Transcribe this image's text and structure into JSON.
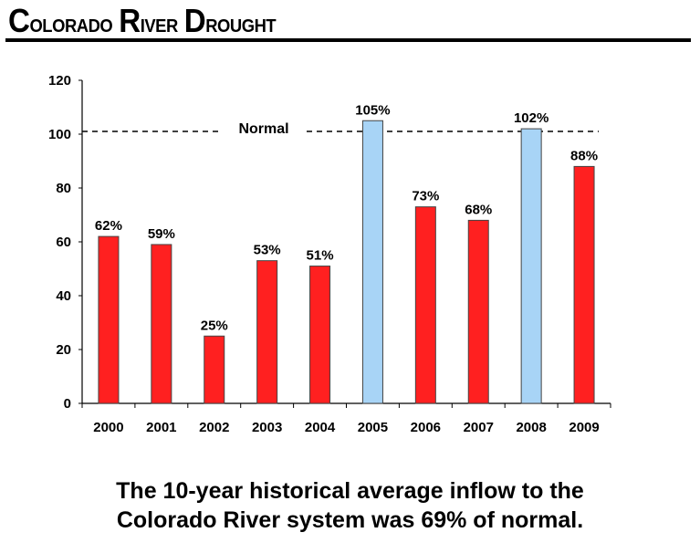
{
  "header": {
    "title": "Colorado River Drought"
  },
  "caption": {
    "line1": "The 10-year historical average inflow to the",
    "line2": "Colorado River system was 69% of normal."
  },
  "colors": {
    "below_normal": "#ff2020",
    "above_normal": "#a8d4f6",
    "bar_outline": "#444444",
    "axis": "#000000"
  },
  "chart_data": {
    "type": "bar",
    "title": "Colorado River Drought",
    "xlabel": "",
    "ylabel": "",
    "categories": [
      "2000",
      "2001",
      "2002",
      "2003",
      "2004",
      "2005",
      "2006",
      "2007",
      "2008",
      "2009"
    ],
    "values": [
      62,
      59,
      25,
      53,
      51,
      105,
      73,
      68,
      102,
      88
    ],
    "data_labels": [
      "62%",
      "59%",
      "25%",
      "53%",
      "51%",
      "105%",
      "73%",
      "68%",
      "102%",
      "88%"
    ],
    "ylim": [
      0,
      120
    ],
    "yticks": [
      0,
      20,
      40,
      60,
      80,
      100,
      120
    ],
    "grid": false,
    "reference_line": {
      "label": "Normal",
      "value": 101,
      "style": "dashed"
    },
    "legend": "none"
  }
}
